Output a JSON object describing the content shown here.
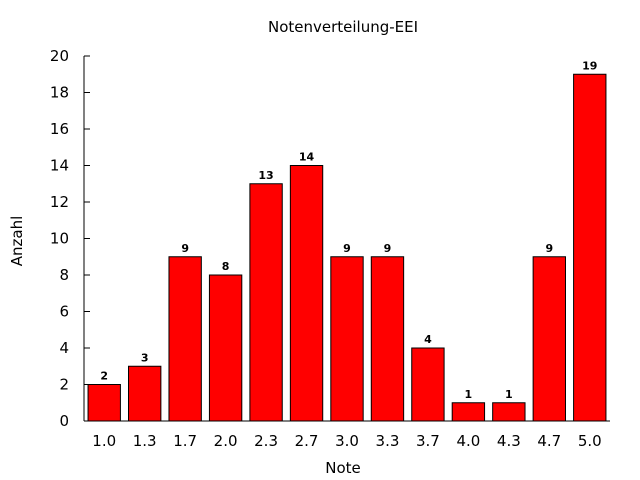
{
  "chart_data": {
    "type": "bar",
    "title": "Notenverteilung-EEI",
    "xlabel": "Note",
    "ylabel": "Anzahl",
    "categories": [
      "1.0",
      "1.3",
      "1.7",
      "2.0",
      "2.3",
      "2.7",
      "3.0",
      "3.3",
      "3.7",
      "4.0",
      "4.3",
      "4.7",
      "5.0"
    ],
    "values": [
      2,
      3,
      9,
      8,
      13,
      14,
      9,
      9,
      4,
      1,
      1,
      9,
      19
    ],
    "ylim": [
      0,
      20
    ],
    "yticks": [
      0,
      2,
      4,
      6,
      8,
      10,
      12,
      14,
      16,
      18,
      20
    ],
    "bar_color": "#ff0000",
    "grid": false,
    "data_labels": true
  }
}
